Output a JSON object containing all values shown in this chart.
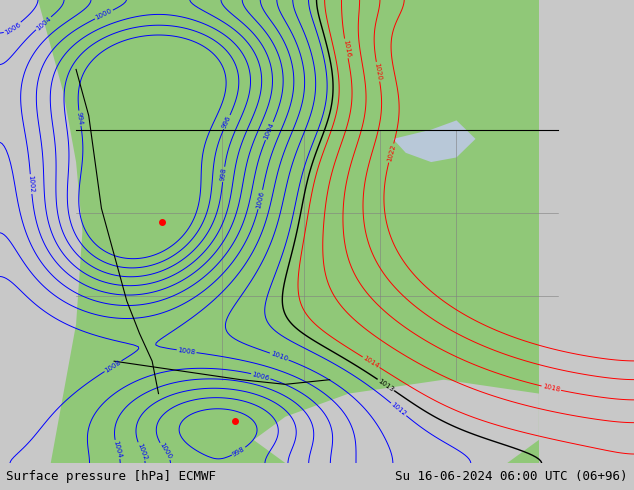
{
  "title_left": "Surface pressure [hPa] ECMWF",
  "title_right": "Su 16-06-2024 06:00 UTC (06+96)",
  "bg_color": "#c8c8c8",
  "land_color": "#90c878",
  "ocean_color": "#d8d8d8",
  "title_fontsize": 9,
  "fig_width": 6.34,
  "fig_height": 4.9,
  "dpi": 100,
  "bottom_bar_height": 0.055,
  "bottom_bar_color": "#e0e0e0"
}
